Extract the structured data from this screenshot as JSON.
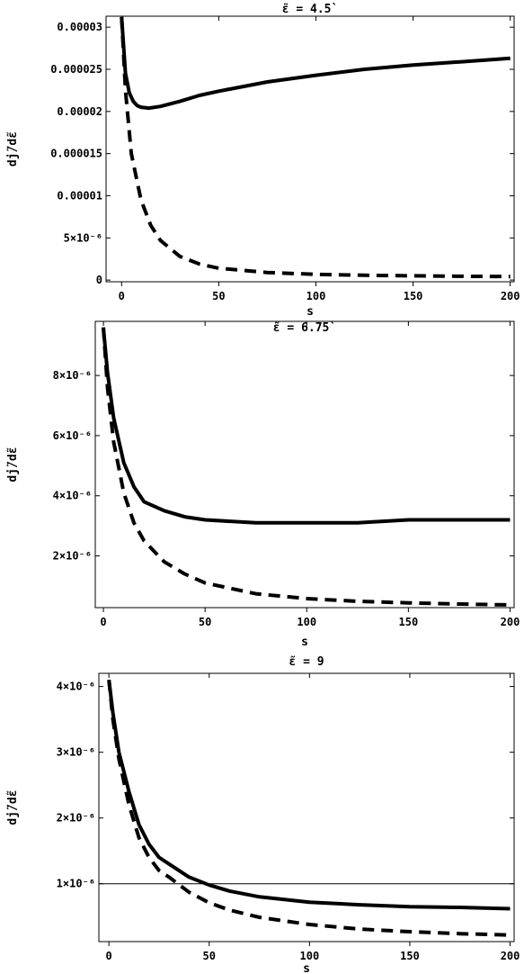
{
  "chart_data": [
    {
      "type": "line",
      "title": "ε̃ = 4.5`",
      "xlabel": "s",
      "ylabel": "dj̃/dε̃",
      "xlim": [
        -8,
        202
      ],
      "ylim": [
        -2e-07,
        3.13e-05
      ],
      "x_ticks": [
        0,
        50,
        100,
        150,
        200
      ],
      "x_tick_labels": [
        "0",
        "50",
        "100",
        "150",
        "200"
      ],
      "y_ticks": [
        0,
        5e-06,
        1e-05,
        1.5e-05,
        2e-05,
        2.5e-05,
        3e-05
      ],
      "y_tick_labels": [
        "0",
        "5×10⁻⁶",
        "0.00001",
        "0.000015",
        "0.00002",
        "0.000025",
        "0.00003"
      ],
      "reference_lines": [],
      "series": [
        {
          "style": "solid",
          "x": [
            0,
            2,
            4,
            6,
            8,
            10,
            14,
            20,
            30,
            40,
            50,
            75,
            100,
            125,
            150,
            175,
            200
          ],
          "y": [
            3.12e-05,
            2.45e-05,
            2.22e-05,
            2.12e-05,
            2.07e-05,
            2.05e-05,
            2.04e-05,
            2.06e-05,
            2.12e-05,
            2.19e-05,
            2.24e-05,
            2.35e-05,
            2.43e-05,
            2.5e-05,
            2.55e-05,
            2.59e-05,
            2.63e-05
          ]
        },
        {
          "style": "dashed",
          "x": [
            0,
            2,
            5,
            10,
            15,
            20,
            30,
            40,
            50,
            75,
            100,
            125,
            150,
            175,
            200
          ],
          "y": [
            3.12e-05,
            2.25e-05,
            1.5e-05,
            9.5e-06,
            6.5e-06,
            4.7e-06,
            2.8e-06,
            1.9e-06,
            1.4e-06,
            9e-07,
            6.8e-07,
            5.7e-07,
            5e-07,
            4.5e-07,
            4.2e-07
          ]
        }
      ]
    },
    {
      "type": "line",
      "title": "ε̃ = 6.75`",
      "xlabel": "s",
      "ylabel": "dj̃/dε̃",
      "xlim": [
        -4,
        202
      ],
      "ylim": [
        2.8e-07,
        9.8e-06
      ],
      "x_ticks": [
        0,
        50,
        100,
        150,
        200
      ],
      "x_tick_labels": [
        "0",
        "50",
        "100",
        "150",
        "200"
      ],
      "y_ticks": [
        2e-06,
        4e-06,
        6e-06,
        8e-06
      ],
      "y_tick_labels": [
        "2×10⁻⁶",
        "4×10⁻⁶",
        "6×10⁻⁶",
        "8×10⁻⁶"
      ],
      "reference_lines": [],
      "series": [
        {
          "style": "solid",
          "x": [
            0,
            2,
            5,
            10,
            15,
            20,
            30,
            40,
            50,
            75,
            100,
            125,
            150,
            175,
            200
          ],
          "y": [
            9.6e-06,
            8.1e-06,
            6.6e-06,
            5.1e-06,
            4.3e-06,
            3.8e-06,
            3.5e-06,
            3.3e-06,
            3.2e-06,
            3.1e-06,
            3.1e-06,
            3.1e-06,
            3.2e-06,
            3.2e-06,
            3.2e-06
          ]
        },
        {
          "style": "dashed",
          "x": [
            0,
            2,
            5,
            10,
            15,
            20,
            30,
            40,
            50,
            75,
            100,
            125,
            150,
            175,
            200
          ],
          "y": [
            9.6e-06,
            7.6e-06,
            5.8e-06,
            4.1e-06,
            3.1e-06,
            2.5e-06,
            1.8e-06,
            1.4e-06,
            1.1e-06,
            7.4e-07,
            5.8e-07,
            4.9e-07,
            4.4e-07,
            4e-07,
            3.7e-07
          ]
        }
      ]
    },
    {
      "type": "line",
      "title": "ε̃ = 9",
      "xlabel": "s",
      "ylabel": "dj̃/dε̃",
      "xlim": [
        -5,
        202
      ],
      "ylim": [
        1.2e-07,
        4.2e-06
      ],
      "x_ticks": [
        0,
        50,
        100,
        150,
        200
      ],
      "x_tick_labels": [
        "0",
        "50",
        "100",
        "150",
        "200"
      ],
      "y_ticks": [
        1e-06,
        2e-06,
        3e-06,
        4e-06
      ],
      "y_tick_labels": [
        "1×10⁻⁶",
        "2×10⁻⁶",
        "3×10⁻⁶",
        "4×10⁻⁶"
      ],
      "reference_lines": [
        1e-06
      ],
      "series": [
        {
          "style": "solid",
          "x": [
            0,
            2,
            5,
            10,
            15,
            20,
            25,
            30,
            40,
            50,
            60,
            75,
            100,
            125,
            150,
            175,
            200
          ],
          "y": [
            4.1e-06,
            3.6e-06,
            3e-06,
            2.4e-06,
            1.9e-06,
            1.6e-06,
            1.4e-06,
            1.3e-06,
            1.1e-06,
            9.8e-07,
            8.9e-07,
            8e-07,
            7.2e-07,
            6.8e-07,
            6.5e-07,
            6.4e-07,
            6.2e-07
          ]
        },
        {
          "style": "dashed",
          "x": [
            0,
            2,
            5,
            10,
            15,
            20,
            25,
            30,
            40,
            50,
            60,
            75,
            100,
            125,
            150,
            175,
            200
          ],
          "y": [
            4.1e-06,
            3.5e-06,
            2.9e-06,
            2.2e-06,
            1.7e-06,
            1.4e-06,
            1.2e-06,
            1.1e-06,
            8.7e-07,
            7.1e-07,
            6e-07,
            4.9e-07,
            3.8e-07,
            3.1e-07,
            2.7e-07,
            2.4e-07,
            2.2e-07
          ]
        }
      ]
    }
  ]
}
